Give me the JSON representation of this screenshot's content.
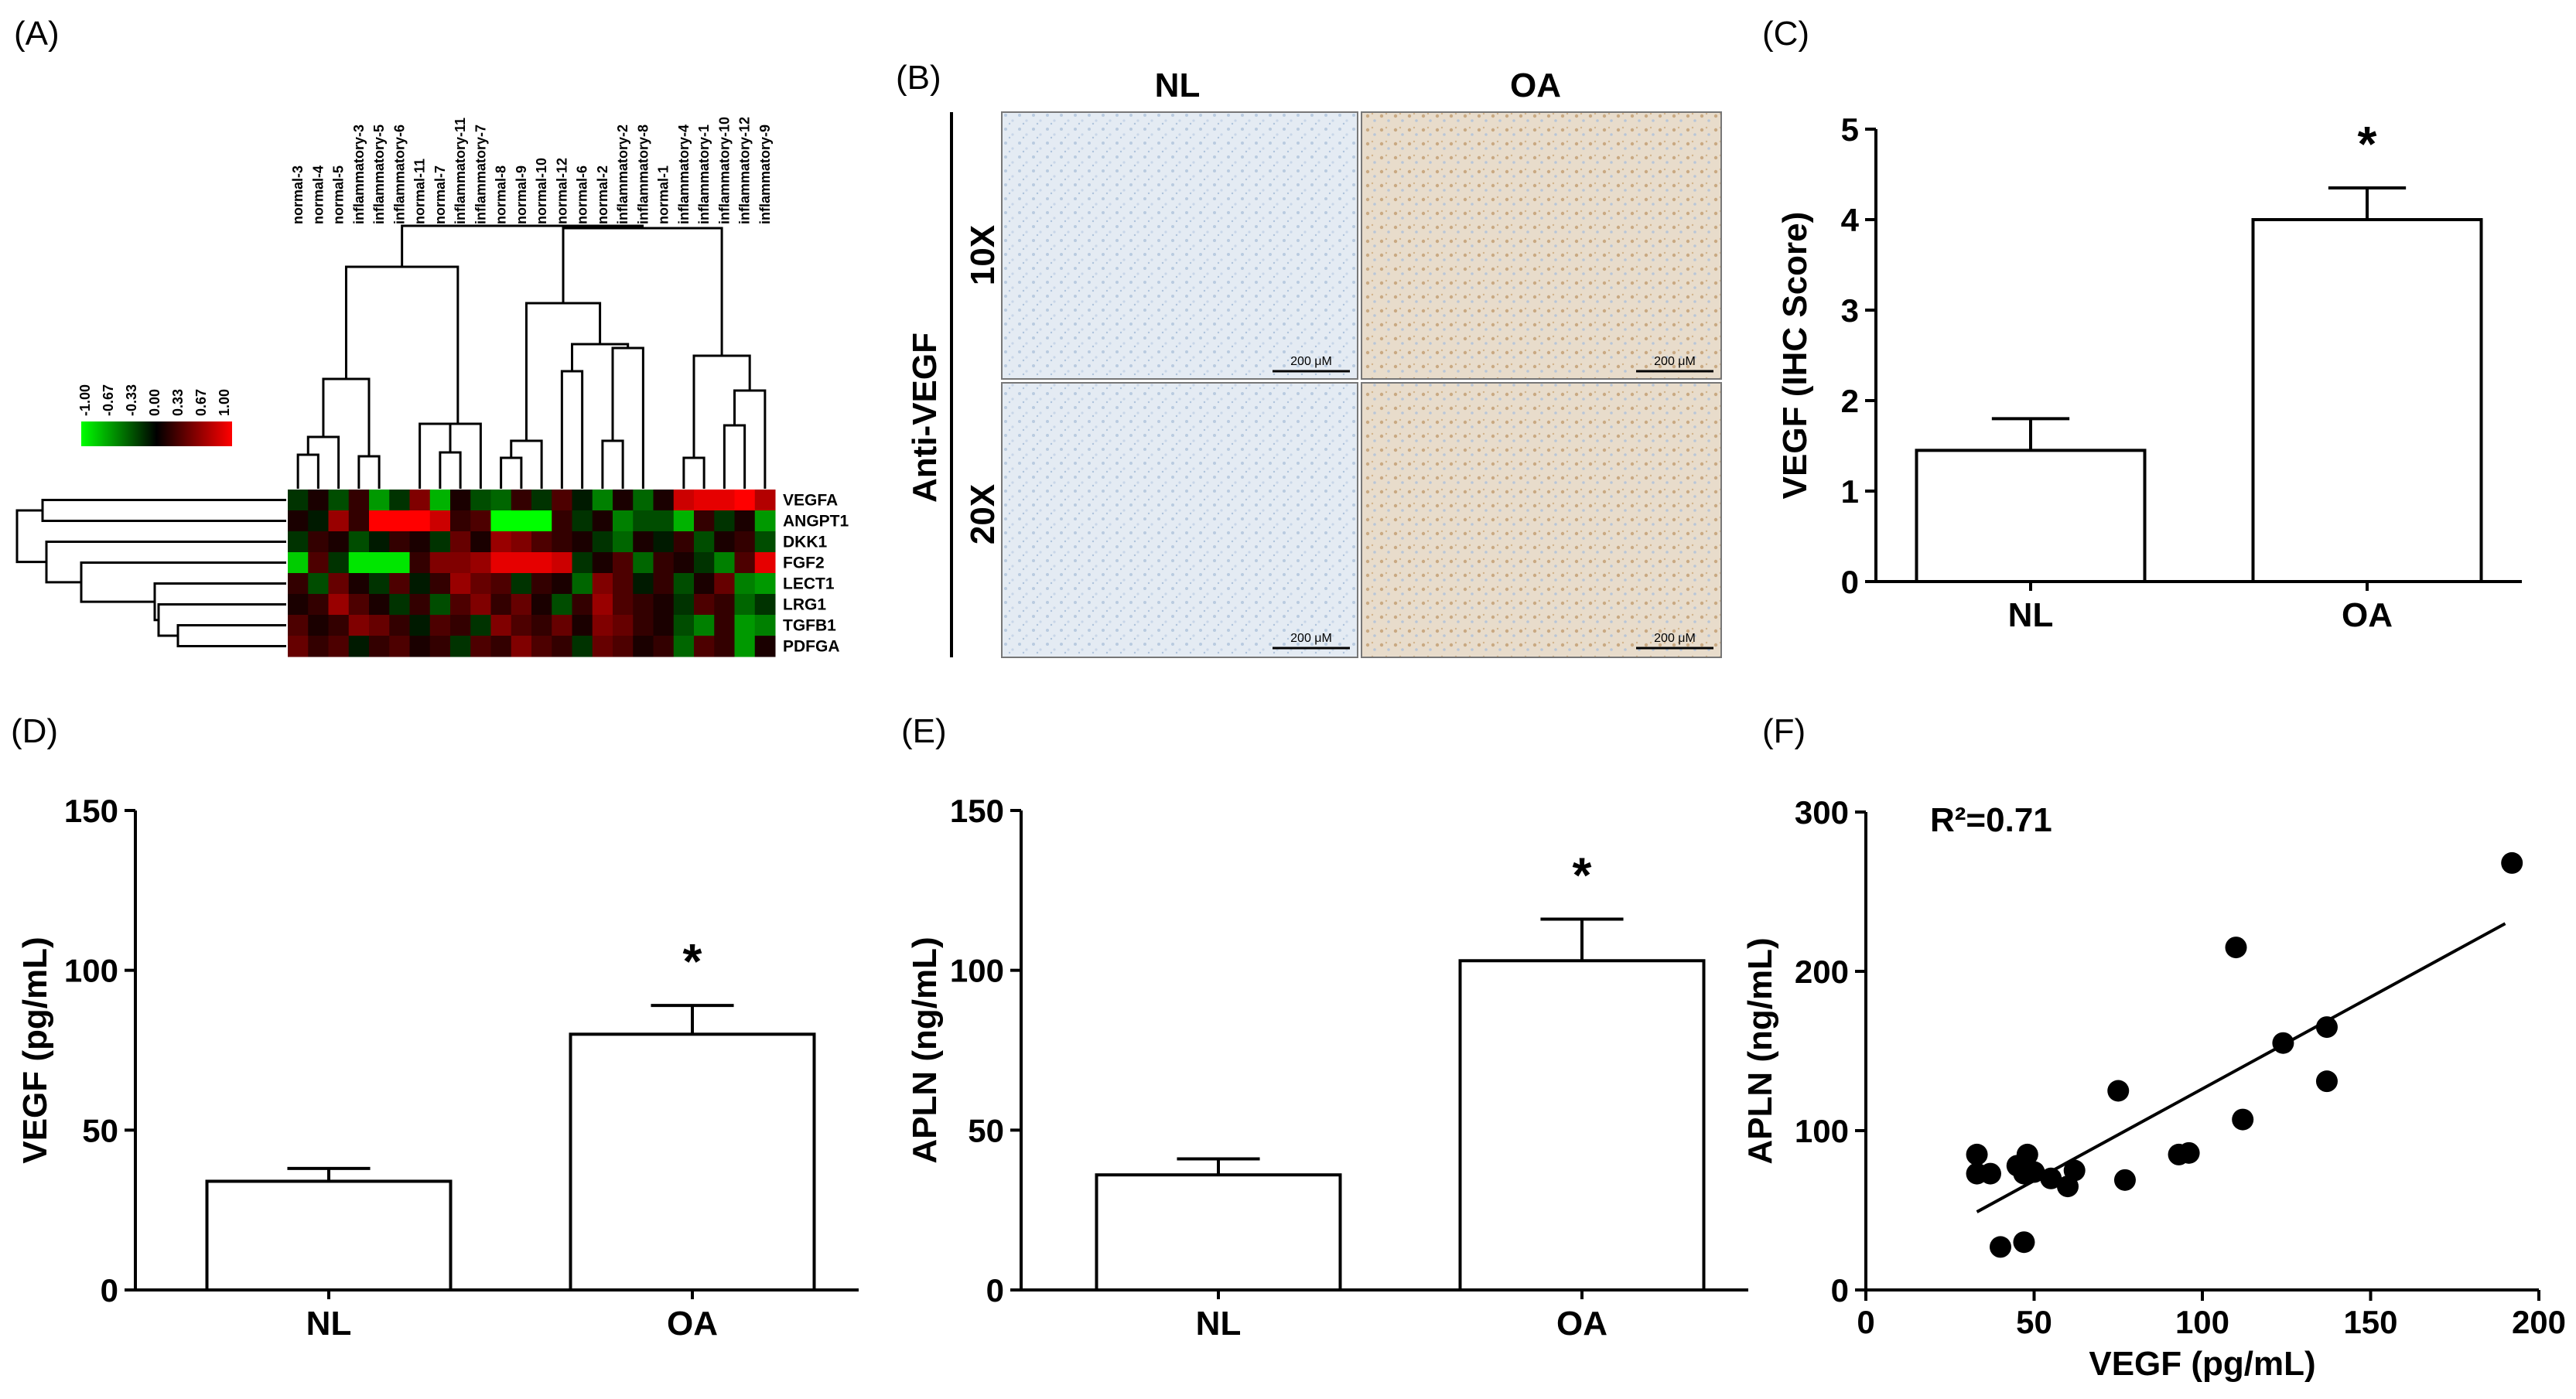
{
  "panels": {
    "A": "(A)",
    "B": "(B)",
    "C": "(C)",
    "D": "(D)",
    "E": "(E)",
    "F": "(F)"
  },
  "colors": {
    "low": "#00ff00",
    "mid": "#000000",
    "high": "#ff0000",
    "bar_fill": "#ffffff",
    "ink": "#000000"
  },
  "heatmap": {
    "legend_ticks": [
      "-1.00",
      "-0.67",
      "-0.33",
      "0.00",
      "0.33",
      "0.67",
      "1.00"
    ],
    "columns": [
      "normal-3",
      "normal-4",
      "normal-5",
      "inflammatory-3",
      "inflammatory-5",
      "inflammatory-6",
      "normal-11",
      "normal-7",
      "inflammatory-11",
      "inflammatory-7",
      "normal-8",
      "normal-9",
      "normal-10",
      "normal-12",
      "normal-6",
      "normal-2",
      "inflammatory-2",
      "inflammatory-8",
      "normal-1",
      "inflammatory-4",
      "inflammatory-1",
      "inflammatory-10",
      "inflammatory-12",
      "inflammatory-9"
    ],
    "rows": [
      "VEGFA",
      "ANGPT1",
      "DKK1",
      "FGF2",
      "LECT1",
      "LRG1",
      "TGFB1",
      "PDFGA"
    ],
    "values": [
      [
        -0.2,
        0.1,
        -0.3,
        0.2,
        -0.6,
        -0.2,
        0.5,
        -0.7,
        0.1,
        -0.3,
        -0.4,
        0.2,
        -0.2,
        0.3,
        -0.1,
        -0.5,
        0.1,
        -0.4,
        0.1,
        0.8,
        0.9,
        0.9,
        1.0,
        0.7
      ],
      [
        0.1,
        -0.1,
        0.6,
        0.2,
        1.0,
        1.0,
        1.0,
        0.8,
        0.2,
        0.3,
        -1.0,
        -1.0,
        -1.0,
        0.2,
        -0.2,
        0.1,
        -0.5,
        -0.3,
        -0.3,
        -0.7,
        0.2,
        -0.2,
        0.1,
        -0.6
      ],
      [
        -0.2,
        0.2,
        0.1,
        -0.3,
        -0.1,
        0.2,
        0.1,
        -0.2,
        0.4,
        0.1,
        0.6,
        0.5,
        0.3,
        0.2,
        0.1,
        -0.2,
        -0.4,
        0.1,
        -0.1,
        0.2,
        -0.3,
        0.1,
        0.2,
        -0.3
      ],
      [
        -0.8,
        0.3,
        -0.2,
        -0.9,
        -0.9,
        -0.9,
        0.2,
        0.5,
        0.5,
        0.6,
        0.9,
        0.9,
        0.9,
        0.8,
        -0.2,
        0.1,
        0.3,
        -0.4,
        0.2,
        0.1,
        -0.2,
        -0.5,
        0.3,
        0.9
      ],
      [
        0.2,
        -0.3,
        0.4,
        0.1,
        -0.2,
        0.3,
        -0.1,
        0.2,
        0.6,
        0.4,
        0.3,
        -0.2,
        0.2,
        0.1,
        -0.4,
        0.5,
        0.3,
        -0.1,
        0.2,
        -0.3,
        0.1,
        0.4,
        -0.5,
        -0.6
      ],
      [
        0.1,
        0.2,
        0.6,
        0.3,
        0.1,
        -0.2,
        0.2,
        -0.3,
        0.3,
        0.5,
        0.2,
        0.4,
        0.1,
        -0.3,
        0.2,
        0.6,
        0.3,
        0.2,
        0.1,
        -0.2,
        0.3,
        0.2,
        -0.4,
        -0.2
      ],
      [
        0.3,
        0.1,
        0.2,
        0.5,
        0.4,
        0.2,
        -0.1,
        0.3,
        0.2,
        -0.2,
        0.5,
        0.3,
        0.2,
        0.4,
        0.1,
        0.5,
        0.4,
        0.2,
        0.1,
        -0.3,
        -0.5,
        0.2,
        -0.6,
        -0.5
      ],
      [
        0.4,
        0.2,
        0.3,
        -0.1,
        0.2,
        0.3,
        0.1,
        0.2,
        -0.2,
        0.3,
        0.2,
        0.5,
        0.3,
        0.2,
        -0.2,
        0.4,
        0.3,
        0.1,
        0.2,
        -0.4,
        0.3,
        0.2,
        -0.6,
        0.1
      ]
    ]
  },
  "ihc": {
    "col_labels": [
      "NL",
      "OA"
    ],
    "row_labels": [
      "10X",
      "20X"
    ],
    "side_label": "Anti-VEGF",
    "scalebar": "200 μM"
  },
  "chart_data": [
    {
      "panel": "C",
      "type": "bar",
      "categories": [
        "NL",
        "OA"
      ],
      "values": [
        1.45,
        4.0
      ],
      "errors": [
        0.35,
        0.35
      ],
      "ylabel": "VEGF (IHC Score)",
      "ylim": [
        0,
        5
      ],
      "yticks": [
        "0",
        "1",
        "2",
        "3",
        "4",
        "5"
      ],
      "significance": "*"
    },
    {
      "panel": "D",
      "type": "bar",
      "categories": [
        "NL",
        "OA"
      ],
      "values": [
        34,
        80
      ],
      "errors": [
        4,
        9
      ],
      "ylabel": "VEGF (pg/mL)",
      "ylim": [
        0,
        150
      ],
      "yticks": [
        "0",
        "50",
        "100",
        "150"
      ],
      "significance": "*"
    },
    {
      "panel": "E",
      "type": "bar",
      "categories": [
        "NL",
        "OA"
      ],
      "values": [
        36,
        103
      ],
      "errors": [
        5,
        13
      ],
      "ylabel": "APLN (ng/mL)",
      "ylim": [
        0,
        150
      ],
      "yticks": [
        "0",
        "50",
        "100",
        "150"
      ],
      "significance": "*"
    },
    {
      "panel": "F",
      "type": "scatter",
      "xlabel": "VEGF (pg/mL)",
      "ylabel": "APLN (ng/mL)",
      "xlim": [
        0,
        200
      ],
      "ylim": [
        0,
        300
      ],
      "xticks": [
        "0",
        "50",
        "100",
        "150",
        "200"
      ],
      "yticks": [
        "0",
        "100",
        "200",
        "300"
      ],
      "annotation": "R²=0.71",
      "points": [
        [
          33,
          85
        ],
        [
          33,
          73
        ],
        [
          37,
          73
        ],
        [
          40,
          27
        ],
        [
          45,
          78
        ],
        [
          47,
          30
        ],
        [
          47,
          73
        ],
        [
          48,
          85
        ],
        [
          50,
          74
        ],
        [
          55,
          70
        ],
        [
          60,
          65
        ],
        [
          62,
          75
        ],
        [
          75,
          125
        ],
        [
          77,
          69
        ],
        [
          93,
          85
        ],
        [
          96,
          86
        ],
        [
          110,
          215
        ],
        [
          112,
          107
        ],
        [
          124,
          155
        ],
        [
          137,
          165
        ],
        [
          137,
          131
        ],
        [
          192,
          268
        ]
      ],
      "fit": [
        [
          33,
          49
        ],
        [
          190,
          230
        ]
      ]
    }
  ]
}
